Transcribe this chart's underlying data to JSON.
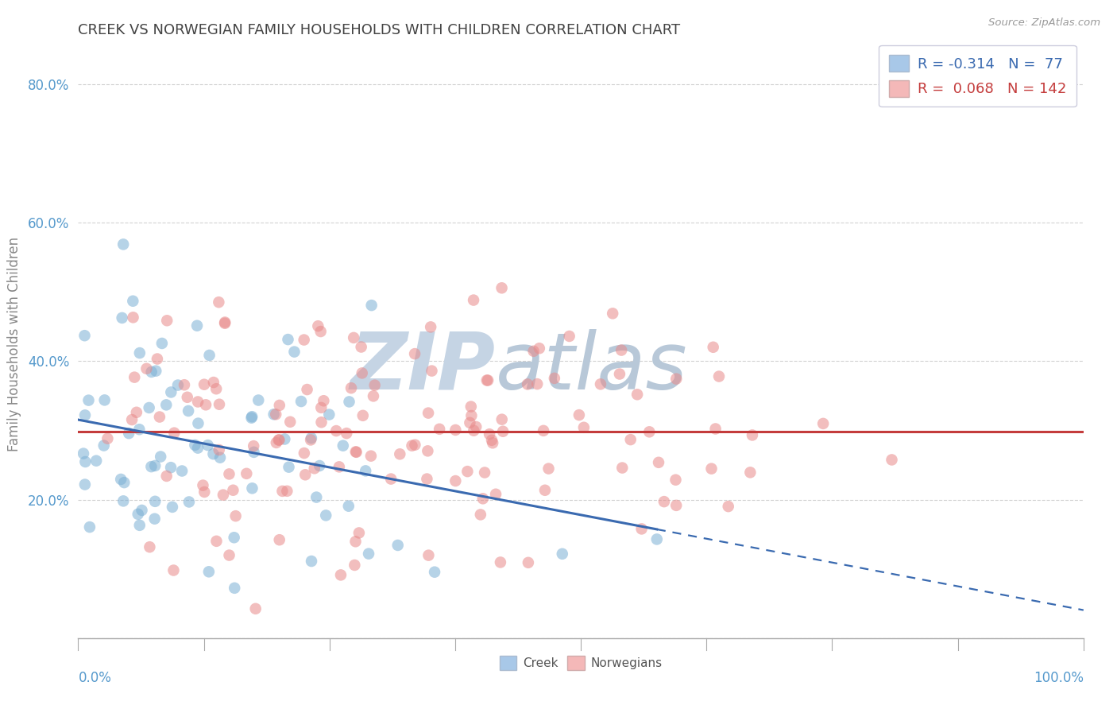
{
  "title": "CREEK VS NORWEGIAN FAMILY HOUSEHOLDS WITH CHILDREN CORRELATION CHART",
  "source": "Source: ZipAtlas.com",
  "ylabel": "Family Households with Children",
  "creek_R": -0.314,
  "creek_N": 77,
  "norwegian_R": 0.068,
  "norwegian_N": 142,
  "creek_color": "#7bafd4",
  "norwegian_color": "#e88a8a",
  "creek_legend_color": "#a8c8e8",
  "norwegian_legend_color": "#f4b8b8",
  "trend_creek_color": "#3a6ab0",
  "trend_norwegian_color": "#c43c3c",
  "background_color": "#ffffff",
  "grid_color": "#cccccc",
  "watermark_color": "#ccd9e8",
  "title_color": "#434343",
  "source_color": "#999999",
  "axis_color": "#aaaaaa",
  "tick_label_color": "#5599cc",
  "xlim": [
    0.0,
    1.0
  ],
  "ylim": [
    0.0,
    0.85
  ],
  "yticks": [
    0.0,
    0.2,
    0.4,
    0.6,
    0.8
  ],
  "ytick_labels": [
    "",
    "20.0%",
    "40.0%",
    "60.0%",
    "80.0%"
  ]
}
